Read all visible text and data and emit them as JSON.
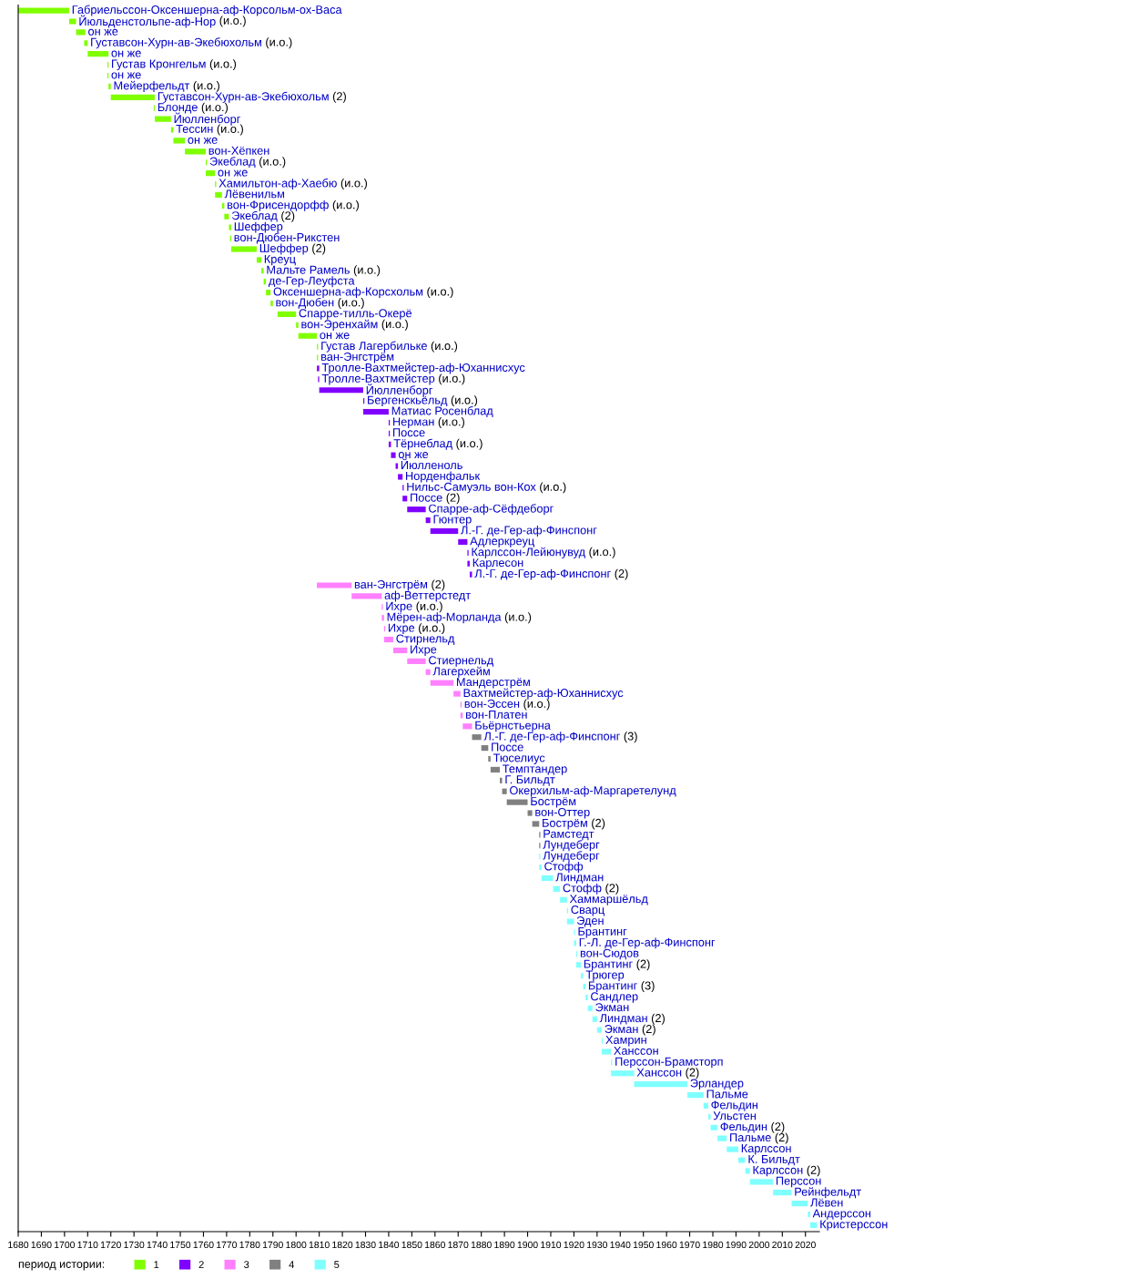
{
  "chart_data": {
    "type": "bar",
    "orientation": "horizontal",
    "categories": [
      "Габриельссон-Оксеншерна-аф-Корсольм-ох-Васа",
      "Йюльденстольпе-аф-Нор (и.о.)",
      "он же",
      "Густавсон-Хурн-ав-Экебюхольм (и.о.)",
      "он же",
      "Густав Кронгельм (и.о.)",
      "он же",
      "Мейерфельдт (и.о.)",
      "Густавсон-Хурн-ав-Экебюхольм (2)",
      "Блонде (и.о.)",
      "Йюлленборг",
      "Тессин (и.о.)",
      "он же",
      "вон-Хёпкен",
      "Экеблад (и.о.)",
      "он же",
      "Хамильтон-аф-Хаебю (и.о.)",
      "Лёвенильм",
      "вон-Фрисендорфф (и.о.)",
      "Экеблад (2)",
      "Шеффер",
      "вон-Дюбен-Рикстен",
      "Шеффер (2)",
      "Креуц",
      "Мальте Рамель (и.о.)",
      "де-Гер-Леуфста",
      "Оксеншерна-аф-Корсхольм (и.о.)",
      "вон-Дюбен (и.о.)",
      "Спарре-тилль-Океpё",
      "вон-Эренхайм (и.о.)",
      "он же",
      "Густав Лагербильке (и.о.)",
      "ван-Энгстрём",
      "Тролле-Вахтмейстер-аф-Юханнисхус",
      "Тролле-Вахтмейстер (и.о.)",
      "Йюлленборг",
      "Бергенскьёльд (и.о.)",
      "Матиас Росенблад",
      "Нерман (и.о.)",
      "Поссе",
      "Тёрнеблад (и.о.)",
      "он же",
      "Йюлленоль",
      "Норденфальк",
      "Нильс-Самуэль вон-Кох (и.о.)",
      "Поссе (2)",
      "Спарре-аф-Сёфдеборг",
      "Гюнтер",
      "Л.-Г. де-Гер-аф-Финспонг",
      "Адлеркреуц",
      "Карлссон-Лейюнувуд (и.о.)",
      "Карлесон",
      "Л.-Г. де-Гер-аф-Финспонг (2)",
      "ван-Энгстрём (2)",
      "аф-Веттерстедт",
      "Ихре (и.о.)",
      "Мёрен-аф-Морланда (и.о.)",
      "Ихре (и.о.)",
      "Стирнельд",
      "Ихре",
      "Стиернельд",
      "Лагерхейм",
      "Мандерстрём",
      "Вахтмейстер-аф-Юханнисхус",
      "вон-Эссен (и.о.)",
      "вон-Платен",
      "Бьёрнстьерна",
      "Л.-Г. де-Гер-аф-Финспонг (3)",
      "Поссе",
      "Тюселиус",
      "Темптандер",
      "Г. Бильдт",
      "Окерхильм-аф-Маргаретелунд",
      "Бострём",
      "вон-Оттер",
      "Бострём (2)",
      "Рамстедт",
      "Лундеберг",
      "Лундеберг",
      "Стофф",
      "Линдман",
      "Стофф (2)",
      "Хаммаршёльд",
      "Сварц",
      "Эден",
      "Брантинг",
      "Г.-Л. де-Гер-аф-Финспонг",
      "вон-Сюдов",
      "Брантинг (2)",
      "Трюгер",
      "Брантинг (3)",
      "Сандлер",
      "Экман",
      "Линдман (2)",
      "Экман (2)",
      "Хамрин",
      "Ханссон",
      "Перссон-Брамсторп",
      "Ханссон (2)",
      "Эрландер",
      "Пальме",
      "Фельдин",
      "Ульстен",
      "Фельдин (2)",
      "Пальме (2)",
      "Карлссон",
      "К. Бильдт",
      "Карлссон (2)",
      "Перссон",
      "Рейнфельдт",
      "Лёвен",
      "Андерссон",
      "Кристерссон"
    ],
    "series": [
      {
        "name": "1",
        "color": "#80ff00",
        "base": [
          1680,
          1702,
          1705,
          1708.5,
          1710,
          1718.5,
          1718.5,
          1719,
          1720,
          1738.5,
          1739,
          1746,
          1747,
          1752,
          1761,
          1761,
          1765,
          1765,
          1768,
          1769,
          1771,
          1771.5,
          1772,
          1783,
          1785,
          1786,
          1787,
          1789,
          1792,
          1800,
          1801,
          1809,
          1809,
          null,
          null,
          null,
          null,
          null,
          null,
          null,
          null,
          null,
          null,
          null,
          null,
          null,
          null,
          null,
          null,
          null,
          null,
          null,
          null,
          null,
          null,
          null,
          null,
          null,
          null,
          null,
          null,
          null,
          null,
          null,
          null,
          null,
          null,
          null,
          null,
          null,
          null,
          null,
          null,
          null,
          null,
          null,
          null,
          null,
          null,
          null,
          null,
          null,
          null,
          null,
          null,
          null,
          null,
          null,
          null,
          null,
          null,
          null,
          null,
          null,
          null,
          null,
          null,
          null,
          null,
          null,
          null,
          null,
          null,
          null,
          null,
          null,
          null,
          null,
          null,
          null,
          null,
          null,
          null
        ],
        "values": [
          22,
          3,
          4,
          1.5,
          9,
          0.5,
          0.5,
          1,
          19,
          0.5,
          7,
          1,
          5,
          9,
          0.5,
          4,
          0.5,
          3,
          1,
          2,
          1,
          0.5,
          11,
          2,
          1,
          1,
          2,
          1,
          8,
          1,
          8,
          0.5,
          0.5,
          null,
          null,
          null,
          null,
          null,
          null,
          null,
          null,
          null,
          null,
          null,
          null,
          null,
          null,
          null,
          null,
          null,
          null,
          null,
          null,
          null,
          null,
          null,
          null,
          null,
          null,
          null,
          null,
          null,
          null,
          null,
          null,
          null,
          null,
          null,
          null,
          null,
          null,
          null,
          null,
          null,
          null,
          null,
          null,
          null,
          null,
          null,
          null,
          null,
          null,
          null,
          null,
          null,
          null,
          null,
          null,
          null,
          null,
          null,
          null,
          null,
          null,
          null,
          null,
          null,
          null,
          null,
          null,
          null,
          null,
          null,
          null,
          null,
          null,
          null,
          null,
          null,
          null,
          null,
          null
        ]
      },
      {
        "name": "2",
        "color": "#8000ff",
        "base": [
          null,
          null,
          null,
          null,
          null,
          null,
          null,
          null,
          null,
          null,
          null,
          null,
          null,
          null,
          null,
          null,
          null,
          null,
          null,
          null,
          null,
          null,
          null,
          null,
          null,
          null,
          null,
          null,
          null,
          null,
          null,
          null,
          null,
          1809,
          1809.5,
          1810,
          1829,
          1829,
          1840,
          1840,
          1840,
          1841,
          1843,
          1844,
          1846,
          1846,
          1848,
          1856,
          1858,
          1870,
          1874,
          1874,
          1875,
          null,
          null,
          null,
          null,
          null,
          null,
          null,
          null,
          null,
          null,
          null,
          null,
          null,
          null,
          null,
          null,
          null,
          null,
          null,
          null,
          null,
          null,
          null,
          null,
          null,
          null,
          null,
          null,
          null,
          null,
          null,
          null,
          null,
          null,
          null,
          null,
          null,
          null,
          null,
          null,
          null,
          null,
          null,
          null,
          null,
          null,
          null,
          null,
          null,
          null,
          null,
          null,
          null,
          null,
          null,
          null,
          null,
          null,
          null,
          null
        ],
        "values": [
          null,
          null,
          null,
          null,
          null,
          null,
          null,
          null,
          null,
          null,
          null,
          null,
          null,
          null,
          null,
          null,
          null,
          null,
          null,
          null,
          null,
          null,
          null,
          null,
          null,
          null,
          null,
          null,
          null,
          null,
          null,
          null,
          null,
          1,
          0.5,
          19,
          0.5,
          11,
          0.5,
          0.5,
          1,
          2,
          1,
          2,
          0.5,
          2,
          8,
          2,
          12,
          4,
          0.5,
          1,
          1,
          null,
          null,
          null,
          null,
          null,
          null,
          null,
          null,
          null,
          null,
          null,
          null,
          null,
          null,
          null,
          null,
          null,
          null,
          null,
          null,
          null,
          null,
          null,
          null,
          null,
          null,
          null,
          null,
          null,
          null,
          null,
          null,
          null,
          null,
          null,
          null,
          null,
          null,
          null,
          null,
          null,
          null,
          null,
          null,
          null,
          null,
          null,
          null,
          null,
          null,
          null,
          null,
          null,
          null,
          null,
          null,
          null,
          null,
          null,
          null
        ]
      },
      {
        "name": "3",
        "color": "#ff80ff",
        "base": [
          null,
          null,
          null,
          null,
          null,
          null,
          null,
          null,
          null,
          null,
          null,
          null,
          null,
          null,
          null,
          null,
          null,
          null,
          null,
          null,
          null,
          null,
          null,
          null,
          null,
          null,
          null,
          null,
          null,
          null,
          null,
          null,
          null,
          null,
          null,
          null,
          null,
          null,
          null,
          null,
          null,
          null,
          null,
          null,
          null,
          null,
          null,
          null,
          null,
          null,
          null,
          null,
          null,
          1809,
          1824,
          1837,
          1837,
          1838,
          1838,
          1842,
          1848,
          1856,
          1858,
          1868,
          1871,
          1871,
          1872,
          null,
          null,
          null,
          null,
          null,
          null,
          null,
          null,
          null,
          null,
          null,
          null,
          null,
          null,
          null,
          null,
          null,
          null,
          null,
          null,
          null,
          null,
          null,
          null,
          null,
          null,
          null,
          null,
          null,
          null,
          null,
          null,
          null,
          null,
          null,
          null,
          null,
          null,
          null,
          null,
          null,
          null,
          null,
          null,
          null,
          null
        ],
        "values": [
          null,
          null,
          null,
          null,
          null,
          null,
          null,
          null,
          null,
          null,
          null,
          null,
          null,
          null,
          null,
          null,
          null,
          null,
          null,
          null,
          null,
          null,
          null,
          null,
          null,
          null,
          null,
          null,
          null,
          null,
          null,
          null,
          null,
          null,
          null,
          null,
          null,
          null,
          null,
          null,
          null,
          null,
          null,
          null,
          null,
          null,
          null,
          null,
          null,
          null,
          null,
          null,
          null,
          15,
          13,
          0.5,
          1,
          0.5,
          4,
          6,
          8,
          2,
          10,
          3,
          0.5,
          1,
          4,
          null,
          null,
          null,
          null,
          null,
          null,
          null,
          null,
          null,
          null,
          null,
          null,
          null,
          null,
          null,
          null,
          null,
          null,
          null,
          null,
          null,
          null,
          null,
          null,
          null,
          null,
          null,
          null,
          null,
          null,
          null,
          null,
          null,
          null,
          null,
          null,
          null,
          null,
          null,
          null,
          null,
          null,
          null,
          null,
          null,
          null
        ]
      },
      {
        "name": "4",
        "color": "#808080",
        "base": [
          null,
          null,
          null,
          null,
          null,
          null,
          null,
          null,
          null,
          null,
          null,
          null,
          null,
          null,
          null,
          null,
          null,
          null,
          null,
          null,
          null,
          null,
          null,
          null,
          null,
          null,
          null,
          null,
          null,
          null,
          null,
          null,
          null,
          null,
          null,
          null,
          null,
          null,
          null,
          null,
          null,
          null,
          null,
          null,
          null,
          null,
          null,
          null,
          null,
          null,
          null,
          null,
          null,
          null,
          null,
          null,
          null,
          null,
          null,
          null,
          null,
          null,
          null,
          null,
          null,
          null,
          null,
          1876,
          1880,
          1883,
          1884,
          1888,
          1889,
          1891,
          1900,
          1902,
          1905,
          1905,
          null,
          null,
          null,
          null,
          null,
          null,
          null,
          null,
          null,
          null,
          null,
          null,
          null,
          null,
          null,
          null,
          null,
          null,
          null,
          null,
          null,
          null,
          null,
          null,
          null,
          null,
          null,
          null,
          null,
          null,
          null,
          null,
          null,
          null,
          null
        ],
        "values": [
          null,
          null,
          null,
          null,
          null,
          null,
          null,
          null,
          null,
          null,
          null,
          null,
          null,
          null,
          null,
          null,
          null,
          null,
          null,
          null,
          null,
          null,
          null,
          null,
          null,
          null,
          null,
          null,
          null,
          null,
          null,
          null,
          null,
          null,
          null,
          null,
          null,
          null,
          null,
          null,
          null,
          null,
          null,
          null,
          null,
          null,
          null,
          null,
          null,
          null,
          null,
          null,
          null,
          null,
          null,
          null,
          null,
          null,
          null,
          null,
          null,
          null,
          null,
          null,
          null,
          null,
          null,
          4,
          3,
          1,
          4,
          1,
          2,
          9,
          2,
          3,
          0.5,
          0.5,
          null,
          null,
          null,
          null,
          null,
          null,
          null,
          null,
          null,
          null,
          null,
          null,
          null,
          null,
          null,
          null,
          null,
          null,
          null,
          null,
          null,
          null,
          null,
          null,
          null,
          null,
          null,
          null,
          null,
          null,
          null,
          null,
          null,
          null,
          null
        ]
      },
      {
        "name": "5",
        "color": "#80ffff",
        "base": [
          null,
          null,
          null,
          null,
          null,
          null,
          null,
          null,
          null,
          null,
          null,
          null,
          null,
          null,
          null,
          null,
          null,
          null,
          null,
          null,
          null,
          null,
          null,
          null,
          null,
          null,
          null,
          null,
          null,
          null,
          null,
          null,
          null,
          null,
          null,
          null,
          null,
          null,
          null,
          null,
          null,
          null,
          null,
          null,
          null,
          null,
          null,
          null,
          null,
          null,
          null,
          null,
          null,
          null,
          null,
          null,
          null,
          null,
          null,
          null,
          null,
          null,
          null,
          null,
          null,
          null,
          null,
          null,
          null,
          null,
          null,
          null,
          null,
          null,
          null,
          null,
          null,
          null,
          1905,
          1905,
          1906,
          1911,
          1914,
          1917,
          1917,
          1920,
          1920,
          1921,
          1921,
          1923,
          1924,
          1925,
          1926,
          1928,
          1930,
          1932,
          1932,
          1936,
          1936,
          1946,
          1969,
          1976,
          1978,
          1979,
          1982,
          1986,
          1991,
          1994,
          1996,
          2006,
          2014,
          2021,
          2022
        ],
        "values": [
          null,
          null,
          null,
          null,
          null,
          null,
          null,
          null,
          null,
          null,
          null,
          null,
          null,
          null,
          null,
          null,
          null,
          null,
          null,
          null,
          null,
          null,
          null,
          null,
          null,
          null,
          null,
          null,
          null,
          null,
          null,
          null,
          null,
          null,
          null,
          null,
          null,
          null,
          null,
          null,
          null,
          null,
          null,
          null,
          null,
          null,
          null,
          null,
          null,
          null,
          null,
          null,
          null,
          null,
          null,
          null,
          null,
          null,
          null,
          null,
          null,
          null,
          null,
          null,
          null,
          null,
          null,
          null,
          null,
          null,
          null,
          null,
          null,
          null,
          null,
          null,
          null,
          null,
          0.5,
          1,
          5,
          3,
          3,
          0.5,
          3,
          0.5,
          1,
          0.5,
          2,
          1,
          1,
          1,
          2,
          2,
          2,
          0.5,
          4,
          0.5,
          10,
          23,
          7,
          2,
          1,
          3,
          4,
          5,
          3,
          2,
          10,
          8,
          7,
          1,
          3
        ]
      }
    ],
    "xlim": [
      1680,
      2026
    ],
    "xticks": [
      1680,
      1690,
      1700,
      1710,
      1720,
      1730,
      1740,
      1750,
      1760,
      1770,
      1780,
      1790,
      1800,
      1810,
      1820,
      1830,
      1840,
      1850,
      1860,
      1870,
      1880,
      1890,
      1900,
      1910,
      1920,
      1930,
      1940,
      1950,
      1960,
      1970,
      1980,
      1990,
      2000,
      2010,
      2020
    ],
    "legend": "bottom",
    "legend_title": "период истории:"
  }
}
